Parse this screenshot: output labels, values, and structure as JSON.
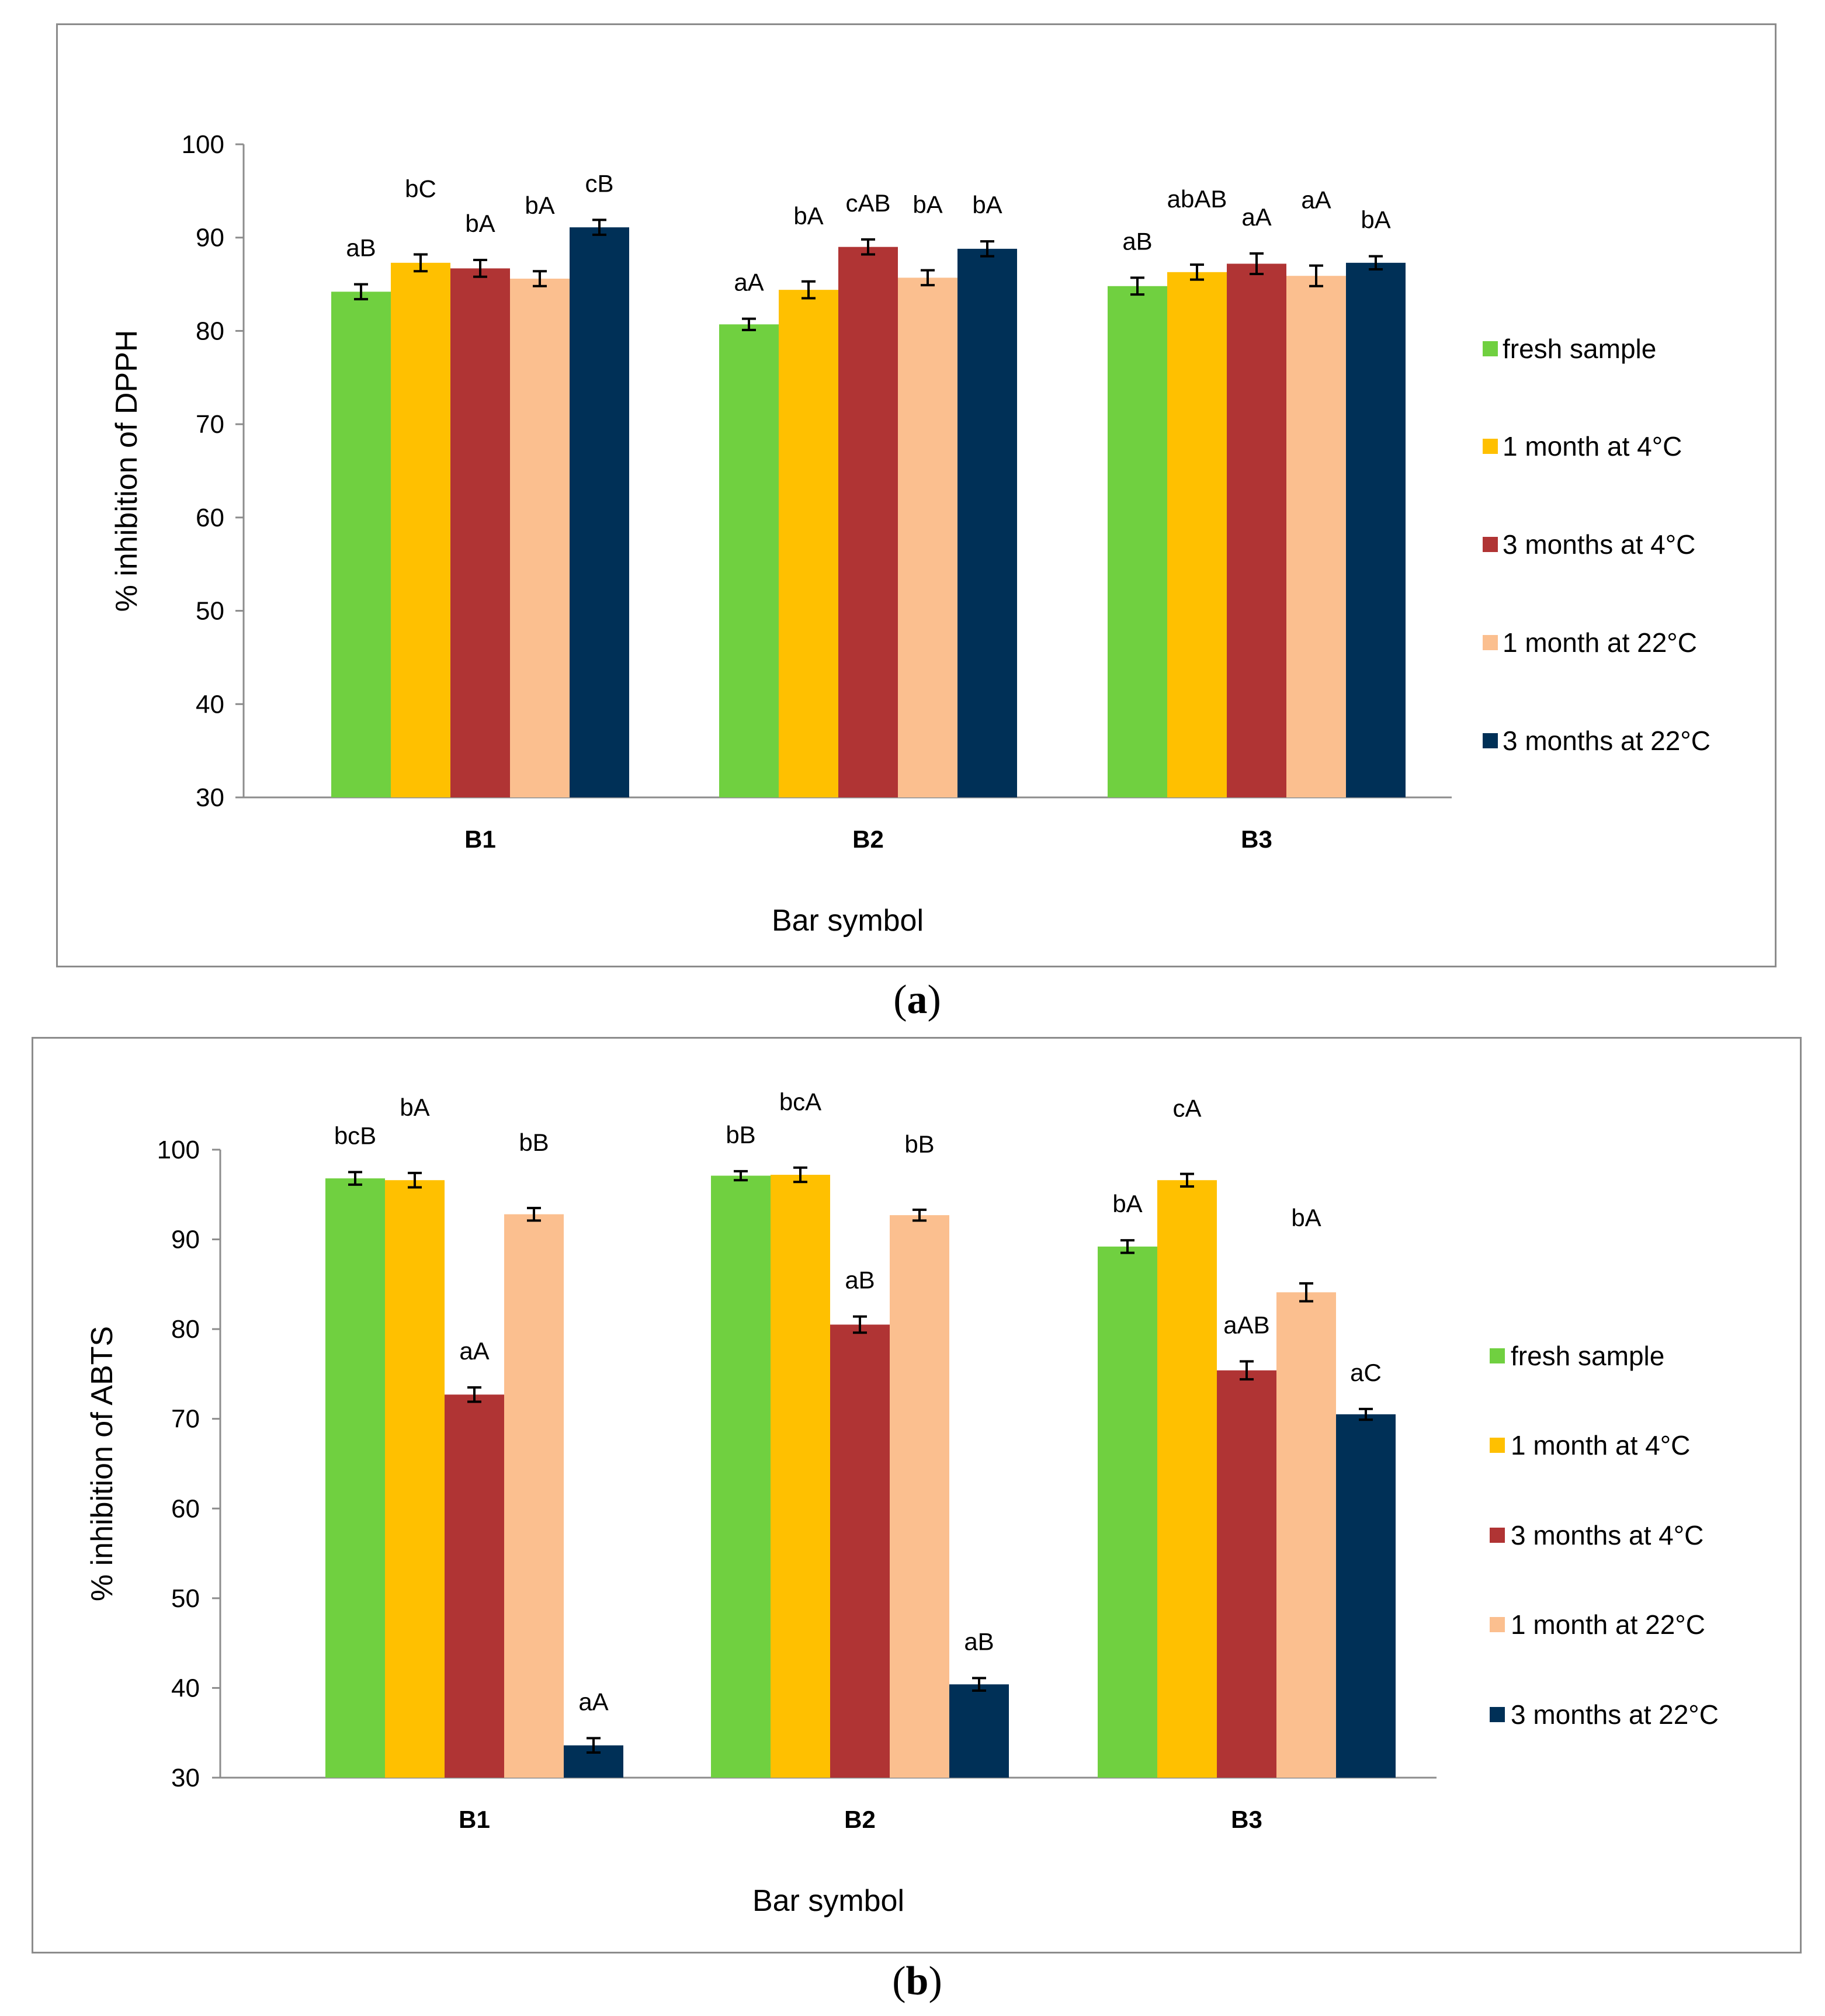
{
  "colors": {
    "fresh": "#70d040",
    "m1_4C": "#ffc000",
    "m3_4C": "#b03434",
    "m1_22C": "#fbbf8f",
    "m3_22C": "#003057",
    "axis": "#8c8c8c",
    "text": "#000000"
  },
  "captions": {
    "a_open": "(",
    "a_letter": "a",
    "a_close": ")",
    "b_open": "(",
    "b_letter": "b",
    "b_close": ")"
  },
  "chart_data": [
    {
      "type": "bar",
      "panel": "a",
      "title": "",
      "xlabel": "Bar symbol",
      "ylabel": "% inhibition of DPPH",
      "ylim": [
        30,
        100
      ],
      "yticks": [
        30,
        40,
        50,
        60,
        70,
        80,
        90,
        100
      ],
      "grid": false,
      "legend_position": "right",
      "categories": [
        "B1",
        "B2",
        "B3"
      ],
      "series": [
        {
          "name": "fresh sample",
          "color_key": "fresh",
          "values": [
            84.2,
            80.7,
            84.8
          ],
          "errors": [
            0.8,
            0.6,
            0.9
          ],
          "labels": [
            "aB",
            "aA",
            "aB"
          ]
        },
        {
          "name": "1 month at 4°C",
          "color_key": "m1_4C",
          "values": [
            87.3,
            84.4,
            86.3
          ],
          "errors": [
            0.9,
            0.9,
            0.8
          ],
          "labels": [
            "bC",
            "bA",
            "abAB"
          ]
        },
        {
          "name": "3 months at 4°C",
          "color_key": "m3_4C",
          "values": [
            86.7,
            89.0,
            87.2
          ],
          "errors": [
            0.9,
            0.8,
            1.1
          ],
          "labels": [
            "bA",
            "cAB",
            "aA"
          ]
        },
        {
          "name": "1 month at 22°C",
          "color_key": "m1_22C",
          "values": [
            85.6,
            85.7,
            85.9
          ],
          "errors": [
            0.8,
            0.8,
            1.1
          ],
          "labels": [
            "bA",
            "bA",
            "aA"
          ]
        },
        {
          "name": "3 months at 22°C",
          "color_key": "m3_22C",
          "values": [
            91.1,
            88.8,
            87.3
          ],
          "errors": [
            0.8,
            0.8,
            0.7
          ],
          "labels": [
            "cB",
            "bA",
            "bA"
          ]
        }
      ]
    },
    {
      "type": "bar",
      "panel": "b",
      "title": "",
      "xlabel": "Bar symbol",
      "ylabel": "% inhibition of ABTS",
      "ylim": [
        30,
        100
      ],
      "yticks": [
        30,
        40,
        50,
        60,
        70,
        80,
        90,
        100
      ],
      "grid": false,
      "legend_position": "right",
      "categories": [
        "B1",
        "B2",
        "B3"
      ],
      "series": [
        {
          "name": "fresh sample",
          "color_key": "fresh",
          "values": [
            96.8,
            97.1,
            89.2
          ],
          "errors": [
            0.7,
            0.5,
            0.7
          ],
          "labels": [
            "bcB",
            "bB",
            "bA"
          ]
        },
        {
          "name": "1 month at 4°C",
          "color_key": "m1_4C",
          "values": [
            96.6,
            97.2,
            96.6
          ],
          "errors": [
            0.8,
            0.8,
            0.7
          ],
          "labels": [
            "bA",
            "bcA",
            "cA"
          ]
        },
        {
          "name": "3 months at 4°C",
          "color_key": "m3_4C",
          "values": [
            72.7,
            80.5,
            75.4
          ],
          "errors": [
            0.8,
            0.9,
            1.0
          ],
          "labels": [
            "aA",
            "aB",
            "aAB"
          ]
        },
        {
          "name": "1 month at 22°C",
          "color_key": "m1_22C",
          "values": [
            92.8,
            92.7,
            84.1
          ],
          "errors": [
            0.7,
            0.6,
            1.0
          ],
          "labels": [
            "bB",
            "bB",
            "bA"
          ]
        },
        {
          "name": "3 months at 22°C",
          "color_key": "m3_22C",
          "values": [
            33.6,
            40.4,
            70.5
          ],
          "errors": [
            0.8,
            0.7,
            0.6
          ],
          "labels": [
            "aA",
            "aB",
            "aC"
          ]
        }
      ]
    }
  ]
}
